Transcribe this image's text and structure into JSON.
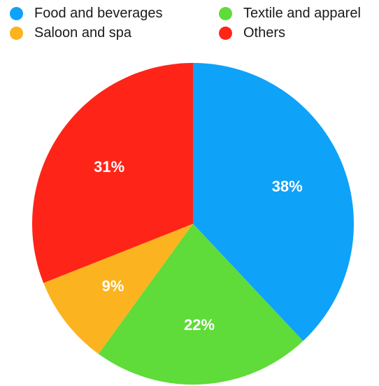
{
  "chart_data": {
    "type": "pie",
    "title": "",
    "legend_position": "top",
    "categories": [
      "Food and beverages",
      "Textile and apparel",
      "Saloon and spa",
      "Others"
    ],
    "values": [
      38,
      22,
      9,
      31
    ],
    "value_labels": [
      "38%",
      "22%",
      "9%",
      "31%"
    ],
    "colors": [
      "#0fa2f9",
      "#5fdb3a",
      "#fbb31f",
      "#ff2418"
    ]
  }
}
